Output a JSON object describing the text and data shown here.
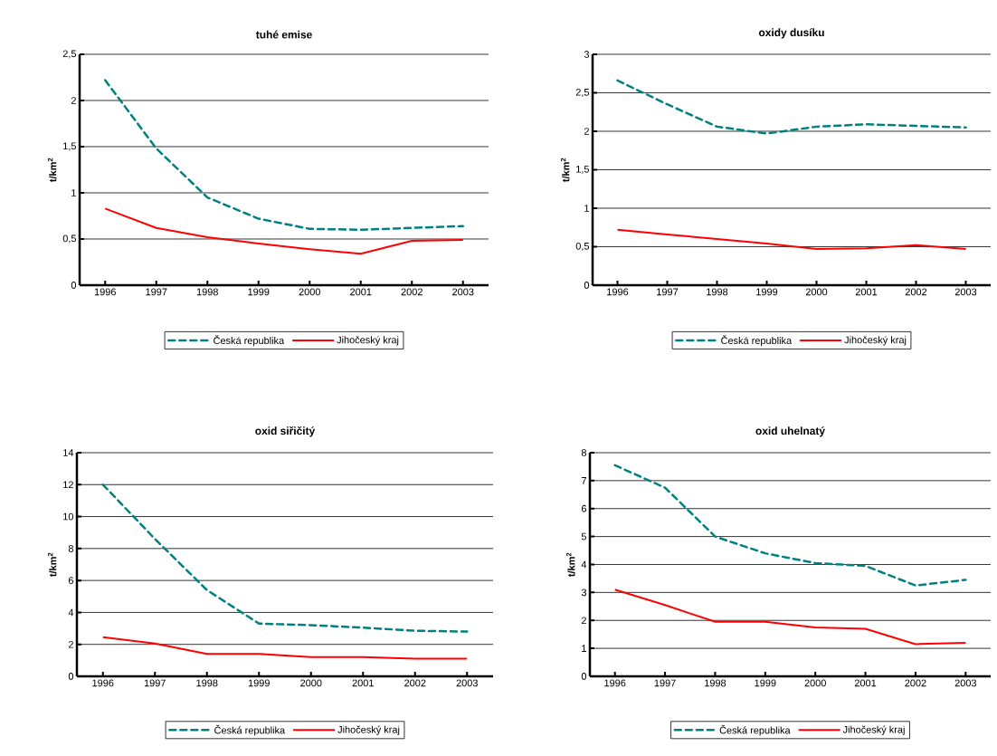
{
  "chart_data": [
    {
      "type": "line",
      "title": "tuhé emise",
      "ylabel": "t/km$^{2}$",
      "categories": [
        "1996",
        "1997",
        "1998",
        "1999",
        "2000",
        "2001",
        "2002",
        "2003"
      ],
      "ylim": [
        0,
        2.5
      ],
      "yticks": [
        0,
        {
          "value": 0.5,
          "label": "0,5"
        },
        1,
        {
          "value": 1.5,
          "label": "1,5"
        },
        2,
        {
          "value": 2.5,
          "label": "2,5"
        }
      ],
      "grid": "y",
      "legend": "bottom",
      "series": [
        {
          "name": "Česká republika",
          "color": "#008080",
          "line_style": "dashed",
          "values": [
            2.22,
            1.48,
            0.95,
            0.72,
            0.61,
            0.6,
            0.62,
            0.64
          ]
        },
        {
          "name": "Jihočeský kraj",
          "color": "#ff0000",
          "line_style": "solid",
          "values": [
            0.83,
            0.62,
            0.52,
            0.45,
            0.39,
            0.34,
            0.48,
            0.49
          ]
        }
      ]
    },
    {
      "type": "line",
      "title": "oxidy dusíku",
      "ylabel": "t/km$^{2}$",
      "categories": [
        "1996",
        "1997",
        "1998",
        "1999",
        "2000",
        "2001",
        "2002",
        "2003"
      ],
      "ylim": [
        0,
        3
      ],
      "yticks": [
        0,
        {
          "value": 0.5,
          "label": "0,5"
        },
        1,
        {
          "value": 1.5,
          "label": "1,5"
        },
        2,
        {
          "value": 2.5,
          "label": "2,5"
        },
        3
      ],
      "grid": "y",
      "legend": "bottom",
      "series": [
        {
          "name": "Česká republika",
          "color": "#008080",
          "line_style": "dashed",
          "values": [
            2.66,
            2.35,
            2.06,
            1.97,
            2.06,
            2.09,
            2.07,
            2.05
          ]
        },
        {
          "name": "Jihočeský kraj",
          "color": "#ff0000",
          "line_style": "solid",
          "values": [
            0.72,
            0.66,
            0.6,
            0.54,
            0.47,
            0.48,
            0.52,
            0.47
          ]
        }
      ]
    },
    {
      "type": "line",
      "title": "oxid siřičitý",
      "ylabel": "t/km$^{2}$",
      "categories": [
        "1996",
        "1997",
        "1998",
        "1999",
        "2000",
        "2001",
        "2002",
        "2003"
      ],
      "ylim": [
        0,
        14
      ],
      "yticks": [
        0,
        2,
        4,
        6,
        8,
        10,
        12,
        14
      ],
      "grid": "y",
      "legend": "bottom",
      "series": [
        {
          "name": "Česká republika",
          "color": "#008080",
          "line_style": "dashed",
          "values": [
            12,
            8.6,
            5.4,
            3.3,
            3.2,
            3.05,
            2.85,
            2.8
          ]
        },
        {
          "name": "Jihočeský kraj",
          "color": "#ff0000",
          "line_style": "solid",
          "values": [
            2.45,
            2.05,
            1.4,
            1.4,
            1.2,
            1.2,
            1.1,
            1.1
          ]
        }
      ]
    },
    {
      "type": "line",
      "title": "oxid uhelnatý",
      "ylabel": "t/km$^{2}$",
      "categories": [
        "1996",
        "1997",
        "1998",
        "1999",
        "2000",
        "2001",
        "2002",
        "2003"
      ],
      "ylim": [
        0,
        8
      ],
      "yticks": [
        0,
        1,
        2,
        3,
        4,
        5,
        6,
        7,
        8
      ],
      "grid": "y",
      "legend": "bottom",
      "series": [
        {
          "name": "Česká republika",
          "color": "#008080",
          "line_style": "dashed",
          "values": [
            7.55,
            6.75,
            5.0,
            4.4,
            4.05,
            3.95,
            3.25,
            3.45
          ]
        },
        {
          "name": "Jihočeský kraj",
          "color": "#ff0000",
          "line_style": "solid",
          "values": [
            3.1,
            2.55,
            1.95,
            1.95,
            1.75,
            1.7,
            1.15,
            1.2
          ]
        }
      ]
    }
  ]
}
